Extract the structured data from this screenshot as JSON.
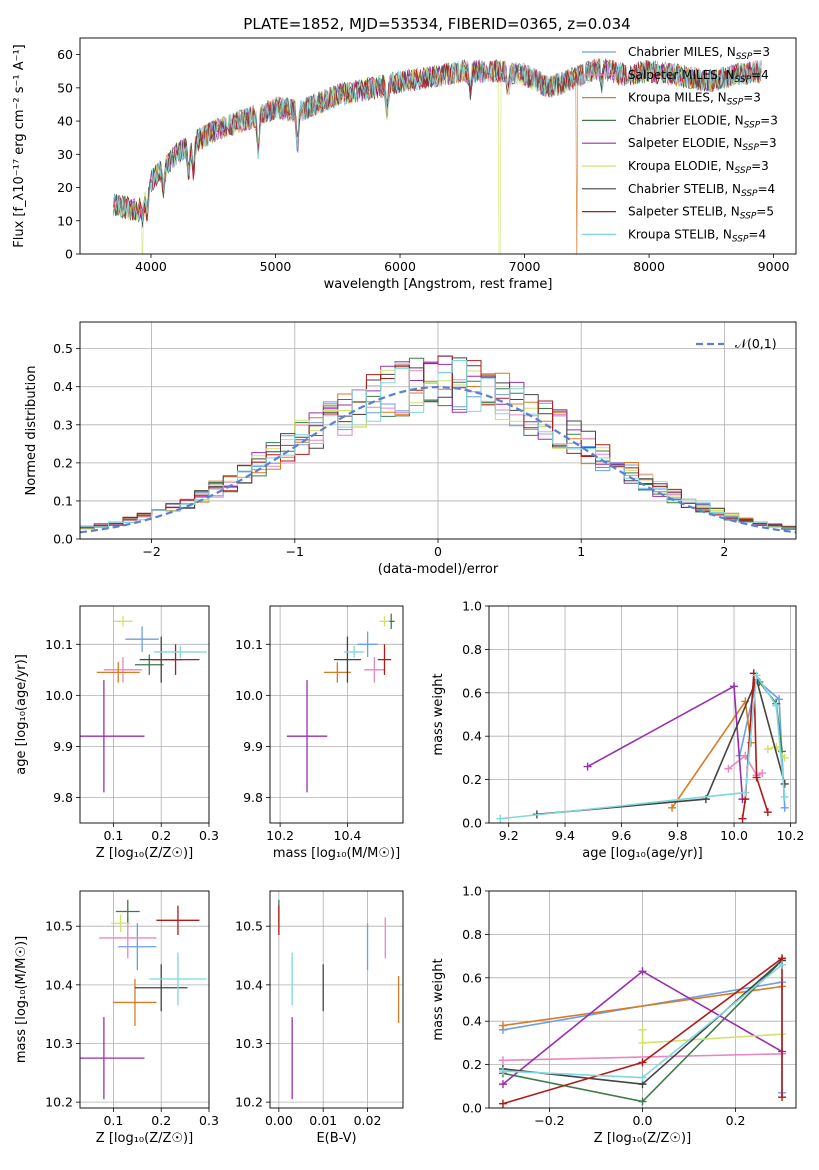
{
  "figure": {
    "title": "PLATE=1852, MJD=53534, FIBERID=0365, z=0.034"
  },
  "models": [
    {
      "key": "chabrier_miles",
      "label": "Chabrier MILES, N",
      "nssp": "=3",
      "color": "#6c9fe3"
    },
    {
      "key": "salpeter_miles",
      "label": "Salpeter MILES, N",
      "nssp": "=4",
      "color": "#e987c1"
    },
    {
      "key": "kroupa_miles",
      "label": "Kroupa MILES, N",
      "nssp": "=3",
      "color": "#d77b27"
    },
    {
      "key": "chabrier_elodie",
      "label": "Chabrier ELODIE, N",
      "nssp": "=3",
      "color": "#3f7a4b"
    },
    {
      "key": "salpeter_elodie",
      "label": "Salpeter ELODIE, N",
      "nssp": "=3",
      "color": "#9a2fb0"
    },
    {
      "key": "kroupa_elodie",
      "label": "Kroupa ELODIE, N",
      "nssp": "=3",
      "color": "#cfe26a"
    },
    {
      "key": "chabrier_stelib",
      "label": "Chabrier STELIB, N",
      "nssp": "=4",
      "color": "#444444"
    },
    {
      "key": "salpeter_stelib",
      "label": "Salpeter STELIB, N",
      "nssp": "=5",
      "color": "#b01a1a"
    },
    {
      "key": "kroupa_stelib",
      "label": "Kroupa STELIB, N",
      "nssp": "=4",
      "color": "#7fd8dc"
    }
  ],
  "chart_data": [
    {
      "id": "spectrum",
      "type": "line",
      "xlabel": "wavelength [Angstrom, rest frame]",
      "ylabel": "Flux [f_λ10⁻¹⁷ erg cm⁻² s⁻¹ A⁻¹]",
      "xlim": [
        3430,
        9180
      ],
      "ylim": [
        0,
        65
      ],
      "xticks": [
        4000,
        5000,
        6000,
        7000,
        8000,
        9000
      ],
      "yticks": [
        0,
        10,
        20,
        30,
        40,
        50,
        60
      ],
      "grid": false,
      "legend": "top-right",
      "x_range": [
        3700,
        8900
      ],
      "continuum": [
        [
          3700,
          15
        ],
        [
          3900,
          13
        ],
        [
          4000,
          22
        ],
        [
          4200,
          30
        ],
        [
          4500,
          37
        ],
        [
          4800,
          41
        ],
        [
          5000,
          44
        ],
        [
          5200,
          43
        ],
        [
          5500,
          48
        ],
        [
          5800,
          50
        ],
        [
          6000,
          52
        ],
        [
          6200,
          53
        ],
        [
          6500,
          55
        ],
        [
          6800,
          55
        ],
        [
          7000,
          54
        ],
        [
          7200,
          50
        ],
        [
          7400,
          53
        ],
        [
          7600,
          56
        ],
        [
          7800,
          54
        ],
        [
          8000,
          55
        ],
        [
          8200,
          54
        ],
        [
          8500,
          52
        ],
        [
          8700,
          54
        ],
        [
          8900,
          55
        ]
      ],
      "absorption": [
        [
          3934,
          5
        ],
        [
          3969,
          7
        ],
        [
          4101,
          7
        ],
        [
          4304,
          8
        ],
        [
          4340,
          9
        ],
        [
          4861,
          10
        ],
        [
          5176,
          11
        ],
        [
          5895,
          8
        ],
        [
          6563,
          6
        ],
        [
          6867,
          6
        ],
        [
          7620,
          4
        ]
      ],
      "glitches": [
        {
          "series": "kroupa_elodie",
          "x": 3930
        },
        {
          "series": "kroupa_elodie",
          "x": 6800
        },
        {
          "series": "kroupa_miles",
          "x": 7420
        }
      ]
    },
    {
      "id": "residuals",
      "type": "histogram",
      "xlabel": "(data-model)/error",
      "ylabel": "Normed distribution",
      "xlim": [
        -2.5,
        2.5
      ],
      "ylim": [
        0,
        0.57
      ],
      "xticks": [
        -2,
        -1,
        0,
        1,
        2
      ],
      "xtick_labels": [
        "−2",
        "−1",
        "0",
        "1",
        "2"
      ],
      "yticks": [
        0.0,
        0.1,
        0.2,
        0.3,
        0.4,
        0.5
      ],
      "grid": true,
      "bin_width": 0.1,
      "reference": {
        "label": "𝒩(0,1)",
        "color": "#5b7fd1",
        "style": "dashed"
      }
    },
    {
      "id": "age_vs_Z",
      "type": "scatter",
      "xlabel": "Z [log₁₀(Z/Z☉)]",
      "ylabel": "age  [log₁₀(age/yr)]",
      "xlim": [
        0.03,
        0.3
      ],
      "ylim": [
        9.75,
        10.175
      ],
      "xticks": [
        0.1,
        0.2,
        0.3
      ],
      "yticks": [
        9.8,
        9.9,
        10.0,
        10.1
      ],
      "grid": true,
      "points": [
        {
          "s": "chabrier_miles",
          "x": 0.16,
          "y": 10.11,
          "ex": 0.035,
          "ey": 0.025
        },
        {
          "s": "salpeter_miles",
          "x": 0.12,
          "y": 10.05,
          "ex": 0.04,
          "ey": 0.025
        },
        {
          "s": "kroupa_miles",
          "x": 0.11,
          "y": 10.045,
          "ex": 0.045,
          "ey": 0.02
        },
        {
          "s": "chabrier_elodie",
          "x": 0.175,
          "y": 10.06,
          "ex": 0.03,
          "ey": 0.02
        },
        {
          "s": "salpeter_elodie",
          "x": 0.08,
          "y": 9.92,
          "ex": 0.085,
          "ey": 0.11
        },
        {
          "s": "kroupa_elodie",
          "x": 0.12,
          "y": 10.145,
          "ex": 0.02,
          "ey": 0.01
        },
        {
          "s": "chabrier_stelib",
          "x": 0.2,
          "y": 10.07,
          "ex": 0.045,
          "ey": 0.045
        },
        {
          "s": "salpeter_stelib",
          "x": 0.23,
          "y": 10.07,
          "ex": 0.05,
          "ey": 0.03
        },
        {
          "s": "kroupa_stelib",
          "x": 0.24,
          "y": 10.085,
          "ex": 0.055,
          "ey": 0.012
        }
      ]
    },
    {
      "id": "age_vs_mass",
      "type": "scatter",
      "xlabel": "mass [log₁₀(M/M☉)]",
      "ylabel": "",
      "xlim": [
        10.17,
        10.565
      ],
      "ylim": [
        9.75,
        10.175
      ],
      "xticks": [
        10.2,
        10.4
      ],
      "yticks": [
        9.8,
        9.9,
        10.0,
        10.1
      ],
      "grid": true,
      "points": [
        {
          "s": "chabrier_miles",
          "x": 10.46,
          "y": 10.1,
          "ex": 0.03,
          "ey": 0.025
        },
        {
          "s": "salpeter_miles",
          "x": 10.48,
          "y": 10.05,
          "ex": 0.03,
          "ey": 0.025
        },
        {
          "s": "kroupa_miles",
          "x": 10.37,
          "y": 10.045,
          "ex": 0.04,
          "ey": 0.02
        },
        {
          "s": "chabrier_elodie",
          "x": 10.53,
          "y": 10.145,
          "ex": 0.01,
          "ey": 0.015
        },
        {
          "s": "salpeter_elodie",
          "x": 10.28,
          "y": 9.92,
          "ex": 0.06,
          "ey": 0.11
        },
        {
          "s": "kroupa_elodie",
          "x": 10.51,
          "y": 10.145,
          "ex": 0.015,
          "ey": 0.01
        },
        {
          "s": "chabrier_stelib",
          "x": 10.4,
          "y": 10.07,
          "ex": 0.04,
          "ey": 0.045
        },
        {
          "s": "salpeter_stelib",
          "x": 10.51,
          "y": 10.07,
          "ex": 0.02,
          "ey": 0.03
        },
        {
          "s": "kroupa_stelib",
          "x": 10.42,
          "y": 10.085,
          "ex": 0.03,
          "ey": 0.012
        }
      ]
    },
    {
      "id": "weight_vs_age",
      "type": "line",
      "xlabel": "age  [log₁₀(age/yr)]",
      "ylabel": "mass weight",
      "xlim": [
        9.13,
        10.22
      ],
      "ylim": [
        0.0,
        1.0
      ],
      "xticks": [
        9.2,
        9.4,
        9.6,
        9.8,
        10.0,
        10.2
      ],
      "yticks": [
        0.0,
        0.2,
        0.4,
        0.6,
        0.8,
        1.0
      ],
      "grid": true,
      "series": [
        {
          "s": "chabrier_miles",
          "points": [
            [
              10.18,
              0.07
            ],
            [
              10.16,
              0.57
            ],
            [
              10.08,
              0.66
            ],
            [
              10.02,
              0.31
            ]
          ]
        },
        {
          "s": "salpeter_miles",
          "points": [
            [
              9.98,
              0.25
            ],
            [
              10.04,
              0.31
            ],
            [
              10.08,
              0.22
            ],
            [
              10.1,
              0.23
            ]
          ]
        },
        {
          "s": "kroupa_miles",
          "points": [
            [
              9.78,
              0.07
            ],
            [
              10.04,
              0.56
            ],
            [
              10.06,
              0.37
            ]
          ]
        },
        {
          "s": "chabrier_elodie",
          "points": [
            [
              10.09,
              0.65
            ],
            [
              10.15,
              0.55
            ],
            [
              10.17,
              0.33
            ]
          ]
        },
        {
          "s": "salpeter_elodie",
          "points": [
            [
              9.48,
              0.26
            ],
            [
              10.0,
              0.63
            ],
            [
              10.03,
              0.11
            ]
          ]
        },
        {
          "s": "kroupa_elodie",
          "points": [
            [
              10.12,
              0.34
            ],
            [
              10.15,
              0.35
            ],
            [
              10.18,
              0.3
            ]
          ]
        },
        {
          "s": "chabrier_stelib",
          "points": [
            [
              9.3,
              0.04
            ],
            [
              9.9,
              0.11
            ],
            [
              10.08,
              0.66
            ],
            [
              10.18,
              0.18
            ]
          ]
        },
        {
          "s": "salpeter_stelib",
          "points": [
            [
              10.03,
              0.02
            ],
            [
              10.04,
              0.11
            ],
            [
              10.07,
              0.69
            ],
            [
              10.08,
              0.21
            ],
            [
              10.12,
              0.05
            ]
          ]
        },
        {
          "s": "kroupa_stelib",
          "points": [
            [
              9.17,
              0.02
            ],
            [
              10.04,
              0.14
            ],
            [
              10.08,
              0.68
            ],
            [
              10.15,
              0.54
            ],
            [
              10.18,
              0.12
            ]
          ]
        }
      ]
    },
    {
      "id": "mass_vs_Z",
      "type": "scatter",
      "xlabel": "Z [log₁₀(Z/Z☉)]",
      "ylabel": "mass [log₁₀(M/M☉)]",
      "xlim": [
        0.03,
        0.3
      ],
      "ylim": [
        10.19,
        10.56
      ],
      "xticks": [
        0.1,
        0.2,
        0.3
      ],
      "yticks": [
        10.2,
        10.3,
        10.4,
        10.5
      ],
      "grid": true,
      "points": [
        {
          "s": "chabrier_miles",
          "x": 0.15,
          "y": 10.465,
          "ex": 0.04,
          "ey": 0.04
        },
        {
          "s": "salpeter_miles",
          "x": 0.13,
          "y": 10.48,
          "ex": 0.06,
          "ey": 0.035
        },
        {
          "s": "kroupa_miles",
          "x": 0.145,
          "y": 10.37,
          "ex": 0.045,
          "ey": 0.04
        },
        {
          "s": "chabrier_elodie",
          "x": 0.13,
          "y": 10.525,
          "ex": 0.025,
          "ey": 0.02
        },
        {
          "s": "salpeter_elodie",
          "x": 0.08,
          "y": 10.275,
          "ex": 0.085,
          "ey": 0.07
        },
        {
          "s": "kroupa_elodie",
          "x": 0.115,
          "y": 10.505,
          "ex": 0.02,
          "ey": 0.015
        },
        {
          "s": "chabrier_stelib",
          "x": 0.2,
          "y": 10.395,
          "ex": 0.055,
          "ey": 0.04
        },
        {
          "s": "salpeter_stelib",
          "x": 0.235,
          "y": 10.51,
          "ex": 0.045,
          "ey": 0.025
        },
        {
          "s": "kroupa_stelib",
          "x": 0.235,
          "y": 10.41,
          "ex": 0.06,
          "ey": 0.045
        }
      ]
    },
    {
      "id": "mass_vs_ebv",
      "type": "scatter",
      "xlabel": "E(B-V)",
      "ylabel": "",
      "xlim": [
        -0.002,
        0.028
      ],
      "ylim": [
        10.19,
        10.56
      ],
      "xticks": [
        0.0,
        0.01,
        0.02
      ],
      "xtick_labels": [
        "0.00",
        "0.01",
        "0.02"
      ],
      "yticks": [
        10.2,
        10.3,
        10.4,
        10.5
      ],
      "grid": true,
      "points": [
        {
          "s": "chabrier_miles",
          "x": 0.02,
          "y": 10.465,
          "ex": 0.0,
          "ey": 0.04
        },
        {
          "s": "salpeter_miles",
          "x": 0.024,
          "y": 10.48,
          "ex": 0.0,
          "ey": 0.035
        },
        {
          "s": "kroupa_miles",
          "x": 0.027,
          "y": 10.375,
          "ex": 0.0,
          "ey": 0.04
        },
        {
          "s": "chabrier_elodie",
          "x": 0.0,
          "y": 10.525,
          "ex": 0.0,
          "ey": 0.02
        },
        {
          "s": "salpeter_elodie",
          "x": 0.003,
          "y": 10.275,
          "ex": 0.0,
          "ey": 0.07
        },
        {
          "s": "kroupa_elodie",
          "x": 0.0,
          "y": 10.505,
          "ex": 0.0,
          "ey": 0.015
        },
        {
          "s": "chabrier_stelib",
          "x": 0.01,
          "y": 10.395,
          "ex": 0.0,
          "ey": 0.04
        },
        {
          "s": "salpeter_stelib",
          "x": 0.0,
          "y": 10.51,
          "ex": 0.0,
          "ey": 0.025
        },
        {
          "s": "kroupa_stelib",
          "x": 0.003,
          "y": 10.41,
          "ex": 0.0,
          "ey": 0.045
        }
      ]
    },
    {
      "id": "weight_vs_Z",
      "type": "line",
      "xlabel": "Z [log₁₀(Z/Z☉)]",
      "ylabel": "mass weight",
      "xlim": [
        -0.33,
        0.33
      ],
      "ylim": [
        0.0,
        1.0
      ],
      "xticks": [
        -0.2,
        0.0,
        0.2
      ],
      "xtick_labels": [
        "−0.2",
        "0.0",
        "0.2"
      ],
      "yticks": [
        0.0,
        0.2,
        0.4,
        0.6,
        0.8,
        1.0
      ],
      "grid": true,
      "series": [
        {
          "s": "chabrier_miles",
          "points": [
            [
              -0.3,
              0.36
            ],
            [
              0.3,
              0.58
            ],
            [
              0.3,
              0.07
            ]
          ]
        },
        {
          "s": "salpeter_miles",
          "points": [
            [
              -0.3,
              0.22
            ],
            [
              0.3,
              0.25
            ]
          ]
        },
        {
          "s": "kroupa_miles",
          "points": [
            [
              -0.3,
              0.38
            ],
            [
              0.3,
              0.56
            ]
          ]
        },
        {
          "s": "chabrier_elodie",
          "points": [
            [
              -0.3,
              0.16
            ],
            [
              0.0,
              0.03
            ],
            [
              0.3,
              0.68
            ]
          ]
        },
        {
          "s": "salpeter_elodie",
          "points": [
            [
              -0.3,
              0.11
            ],
            [
              0.0,
              0.63
            ],
            [
              0.3,
              0.26
            ]
          ]
        },
        {
          "s": "kroupa_elodie",
          "points": [
            [
              0.0,
              0.36
            ],
            [
              0.0,
              0.3
            ],
            [
              0.3,
              0.34
            ]
          ]
        },
        {
          "s": "chabrier_stelib",
          "points": [
            [
              -0.3,
              0.18
            ],
            [
              0.0,
              0.11
            ],
            [
              0.3,
              0.68
            ]
          ]
        },
        {
          "s": "salpeter_stelib",
          "points": [
            [
              -0.3,
              0.02
            ],
            [
              0.0,
              0.21
            ],
            [
              0.3,
              0.69
            ],
            [
              0.3,
              0.05
            ]
          ]
        },
        {
          "s": "kroupa_stelib",
          "points": [
            [
              -0.3,
              0.17
            ],
            [
              0.0,
              0.14
            ],
            [
              0.3,
              0.66
            ]
          ]
        }
      ]
    }
  ]
}
